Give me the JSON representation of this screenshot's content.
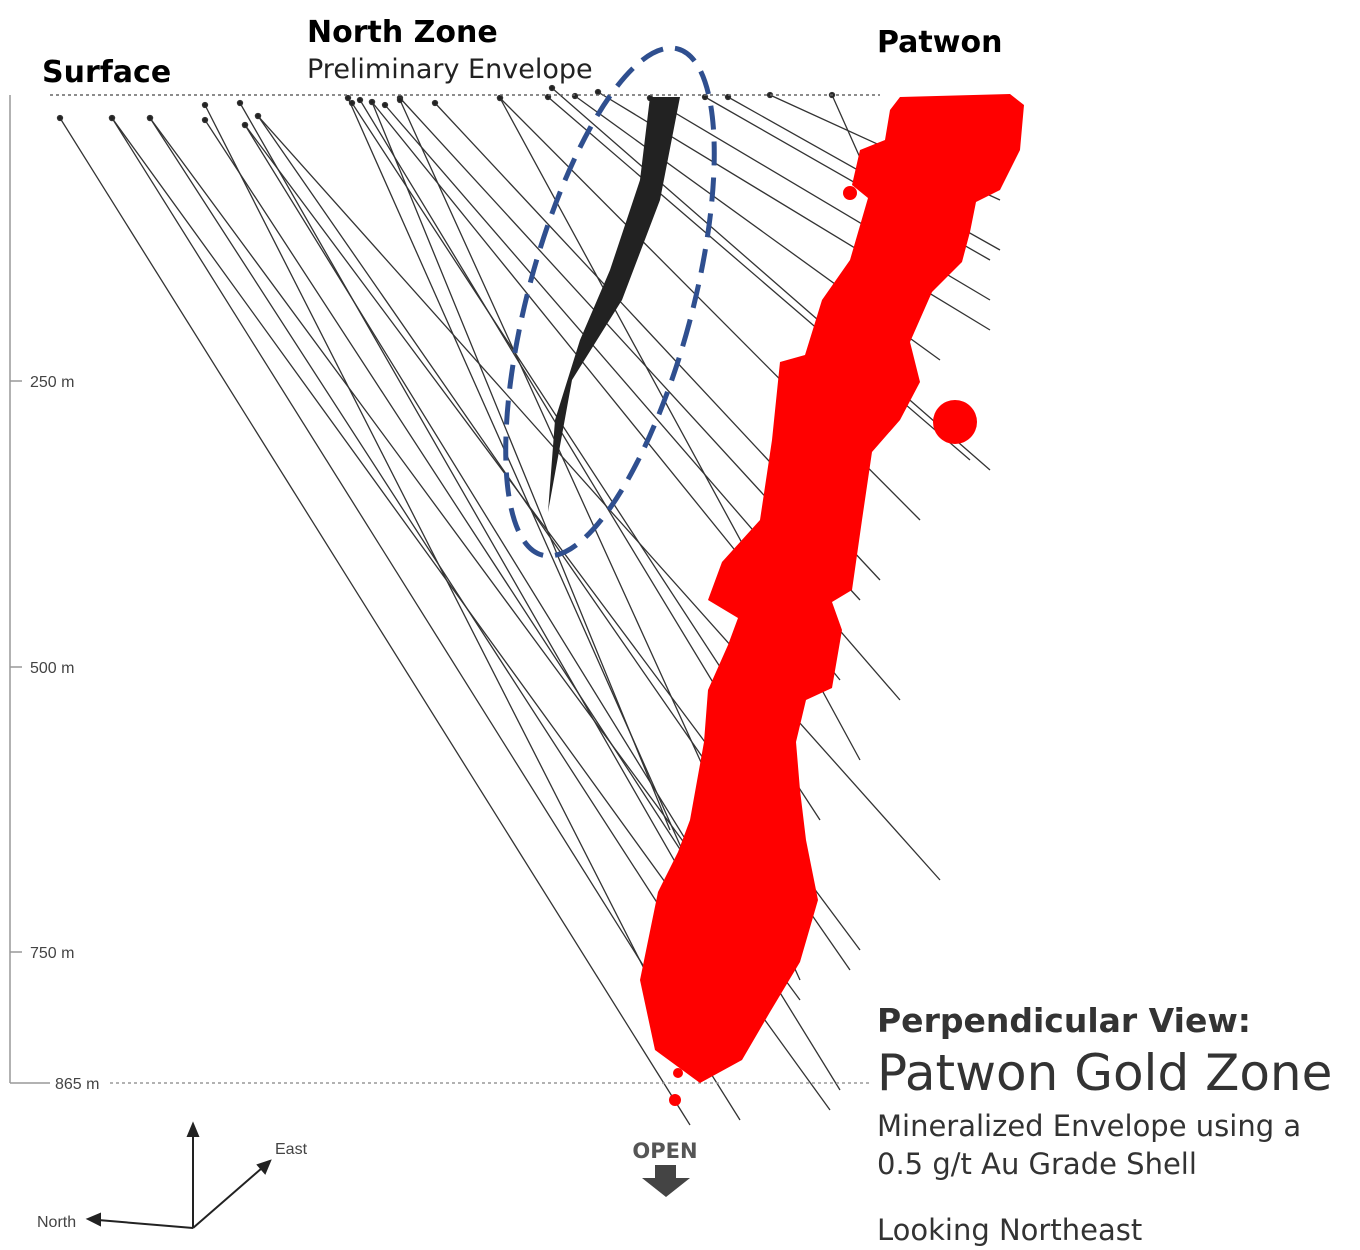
{
  "labels": {
    "surface": "Surface",
    "north_zone": "North Zone",
    "north_zone_sub": "Preliminary Envelope",
    "patwon": "Patwon"
  },
  "depth_axis": [
    "250 m",
    "500 m",
    "750 m",
    "865 m"
  ],
  "compass": {
    "east": "East",
    "north": "North"
  },
  "open": "OPEN",
  "caption": {
    "view": "Perpendicular View:",
    "title": "Patwon Gold Zone",
    "line1": "Mineralized Envelope using a",
    "line2": "0.5 g/t Au Grade Shell",
    "direction": "Looking Northeast"
  }
}
